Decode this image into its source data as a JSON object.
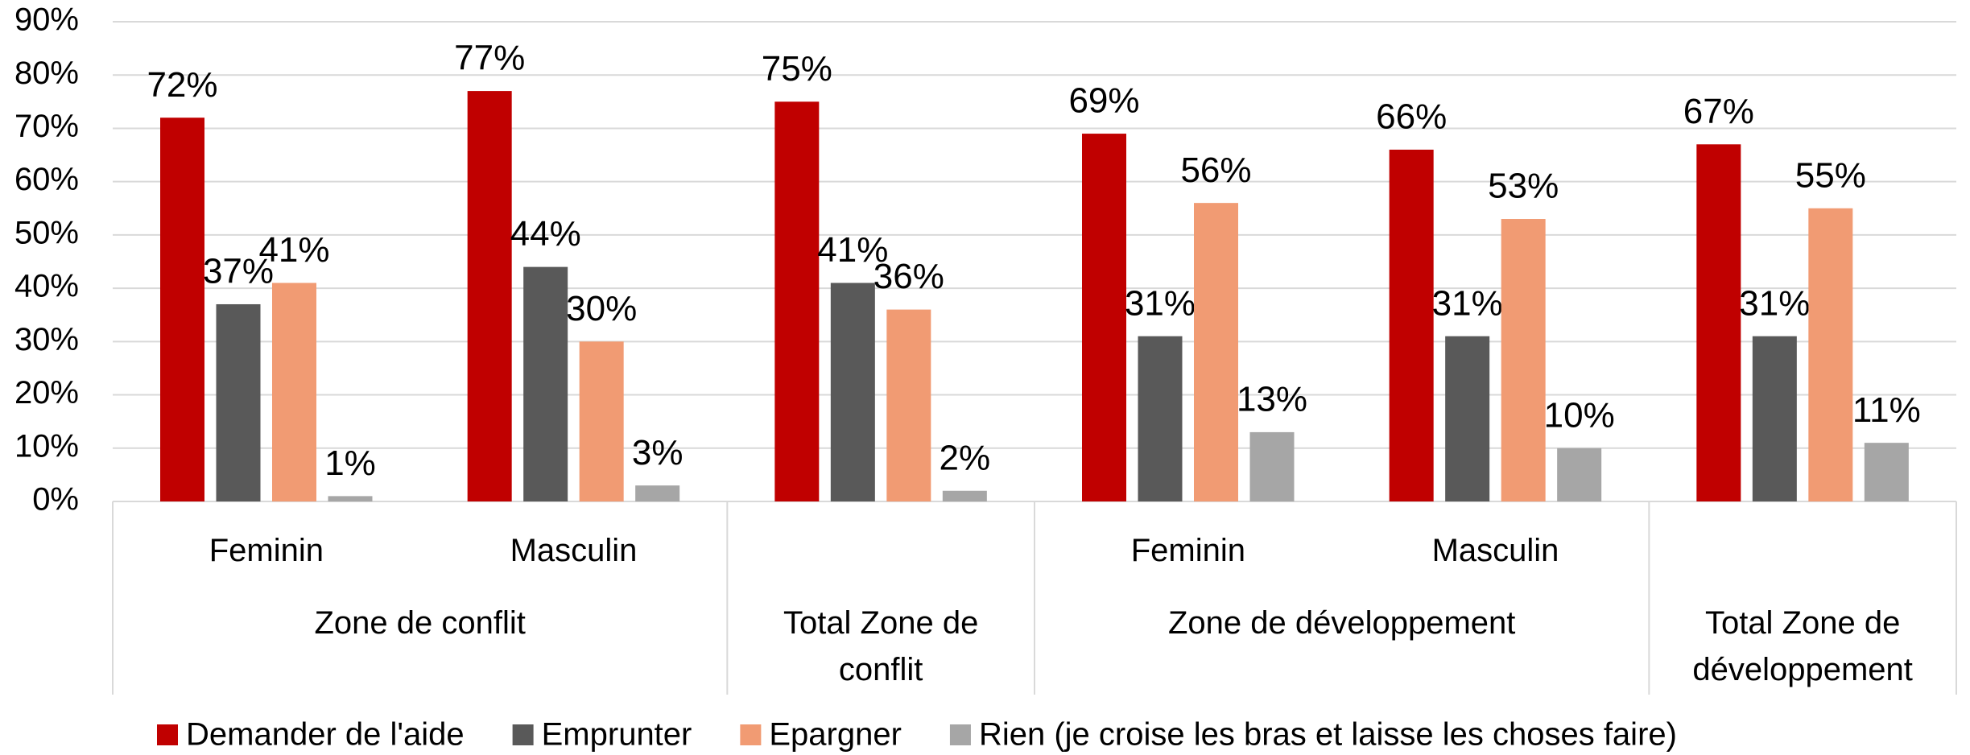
{
  "chart_data": {
    "type": "grouped_bar",
    "groups": [
      {
        "name": "Zone de conflit",
        "categories": [
          "Feminin",
          "Masculin"
        ]
      },
      {
        "name": "Total Zone de conflit",
        "categories": []
      },
      {
        "name": "Zone de développement",
        "categories": [
          "Feminin",
          "Masculin"
        ]
      },
      {
        "name": "Total Zone de développement",
        "categories": []
      }
    ],
    "series": [
      {
        "name": "Demander de l'aide",
        "color": "#c00000",
        "values": [
          72,
          77,
          75,
          69,
          66,
          67
        ],
        "value_labels": [
          "72%",
          "77%",
          "75%",
          "69%",
          "66%",
          "67%"
        ]
      },
      {
        "name": "Emprunter",
        "color": "#595959",
        "values": [
          37,
          44,
          41,
          31,
          31,
          31
        ],
        "value_labels": [
          "37%",
          "44%",
          "41%",
          "31%",
          "31%",
          "31%"
        ]
      },
      {
        "name": "Epargner",
        "color": "#f19b73",
        "values": [
          41,
          30,
          36,
          56,
          53,
          55
        ],
        "value_labels": [
          "41%",
          "30%",
          "36%",
          "56%",
          "53%",
          "55%"
        ]
      },
      {
        "name": "Rien (je croise les bras et laisse les choses faire)",
        "color": "#a6a6a6",
        "values": [
          1,
          3,
          2,
          13,
          10,
          11
        ],
        "value_labels": [
          "1%",
          "3%",
          "2%",
          "13%",
          "10%",
          "11%"
        ]
      }
    ],
    "ylim": [
      0,
      90
    ],
    "yticks": [
      {
        "value": 0,
        "label": "0%"
      },
      {
        "value": 10,
        "label": "10%"
      },
      {
        "value": 20,
        "label": "20%"
      },
      {
        "value": 30,
        "label": "30%"
      },
      {
        "value": 40,
        "label": "40%"
      },
      {
        "value": 50,
        "label": "50%"
      },
      {
        "value": 60,
        "label": "60%"
      },
      {
        "value": 70,
        "label": "70%"
      },
      {
        "value": 80,
        "label": "80%"
      },
      {
        "value": 90,
        "label": "90%"
      }
    ],
    "grid": true,
    "legend": "bottom"
  }
}
